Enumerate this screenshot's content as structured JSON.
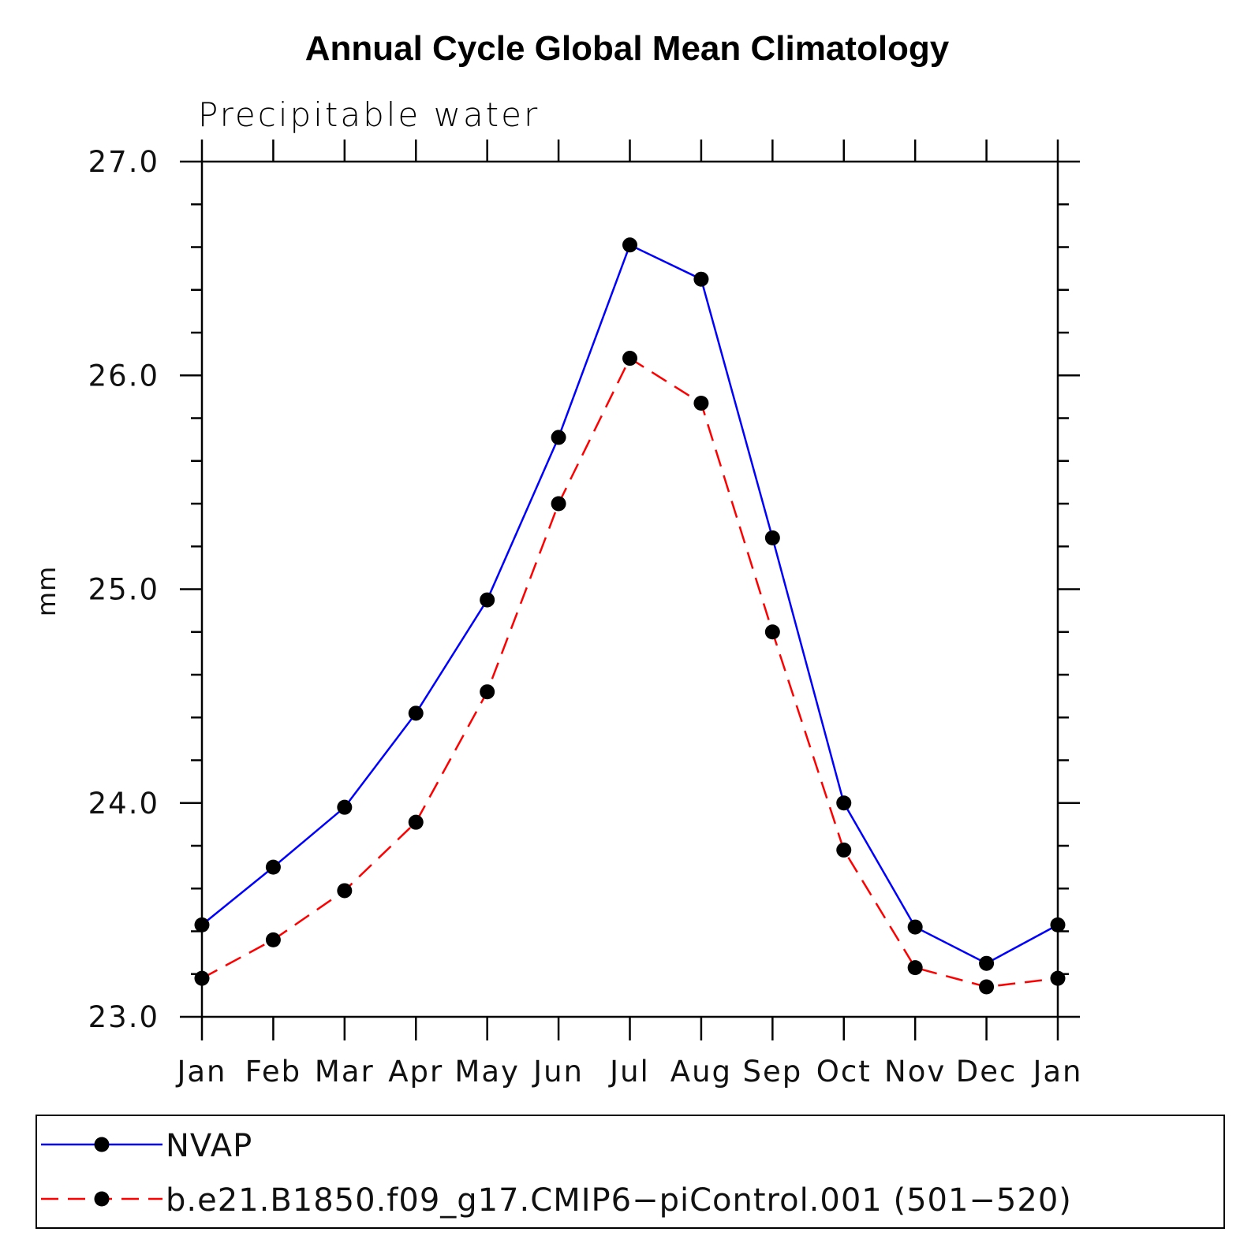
{
  "chart_data": {
    "type": "line",
    "title": "Annual Cycle Global Mean Climatology",
    "subtitle": "Precipitable water",
    "xlabel": "",
    "ylabel": "mm",
    "categories": [
      "Jan",
      "Feb",
      "Mar",
      "Apr",
      "May",
      "Jun",
      "Jul",
      "Aug",
      "Sep",
      "Oct",
      "Nov",
      "Dec",
      "Jan"
    ],
    "ylim": [
      23.0,
      27.0
    ],
    "y_major_ticks": [
      23.0,
      24.0,
      25.0,
      26.0,
      27.0
    ],
    "y_tick_labels": [
      "23.0",
      "24.0",
      "25.0",
      "26.0",
      "27.0"
    ],
    "y_minor_step": 0.2,
    "grid": false,
    "legend_position": "bottom",
    "series": [
      {
        "name": "NVAP",
        "color": "#0000ff",
        "line_style": "solid",
        "marker": "filled-circle",
        "values": [
          23.43,
          23.7,
          23.98,
          24.42,
          24.95,
          25.71,
          26.61,
          26.45,
          25.24,
          24.0,
          23.42,
          23.25,
          23.43
        ]
      },
      {
        "name": "b.e21.B1850.f09_g17.CMIP6−piControl.001 (501−520)",
        "color": "#ff0000",
        "line_style": "dashed",
        "marker": "filled-circle",
        "values": [
          23.18,
          23.36,
          23.59,
          23.91,
          24.52,
          25.4,
          26.08,
          25.87,
          24.8,
          23.78,
          23.23,
          23.14,
          23.18
        ]
      }
    ]
  }
}
